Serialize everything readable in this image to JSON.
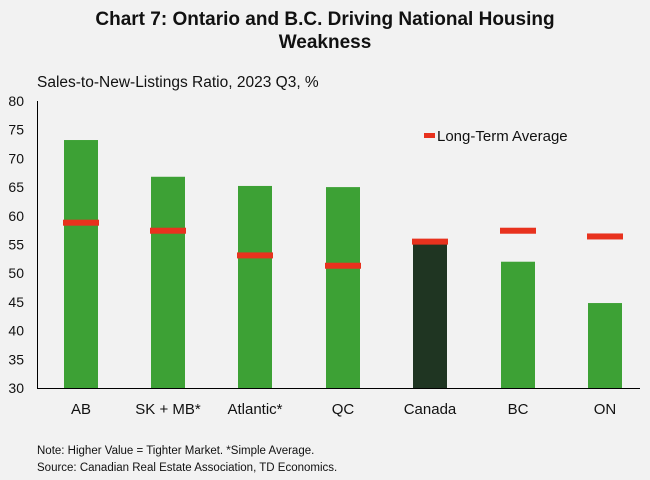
{
  "title_line1": "Chart 7: Ontario and B.C. Driving National Housing",
  "title_line2": "Weakness",
  "note": "Note: Higher Value = Tighter Market. *Simple  Average.",
  "source": "Source: Canadian  Real Estate Association, TD Economics.",
  "chart_data": {
    "type": "bar",
    "title": "Chart 7: Ontario and B.C. Driving National Housing Weakness",
    "ylabel": "Sales-to-New-Listings Ratio, 2023 Q3, %",
    "xlabel": "",
    "ylim": [
      30,
      80
    ],
    "yticks": [
      "80",
      "75",
      "70",
      "65",
      "60",
      "55",
      "50",
      "45",
      "40",
      "35",
      "30"
    ],
    "grid": false,
    "legend_position": "top-right",
    "categories": [
      "AB",
      "SK + MB*",
      "Atlantic*",
      "QC",
      "Canada",
      "BC",
      "ON"
    ],
    "series": [
      {
        "name": "Sales-to-New-Listings Ratio",
        "values": [
          73.2,
          66.8,
          65.2,
          65.0,
          55.5,
          52.0,
          44.8
        ]
      },
      {
        "name": "Long-Term Average",
        "values": [
          58.8,
          57.4,
          53.1,
          51.3,
          55.5,
          57.4,
          56.4
        ]
      }
    ],
    "colors": {
      "bar": "#3da135",
      "highlight_bar": "#1f3522",
      "marker": "#e8321e"
    },
    "highlight_category": "Canada"
  }
}
